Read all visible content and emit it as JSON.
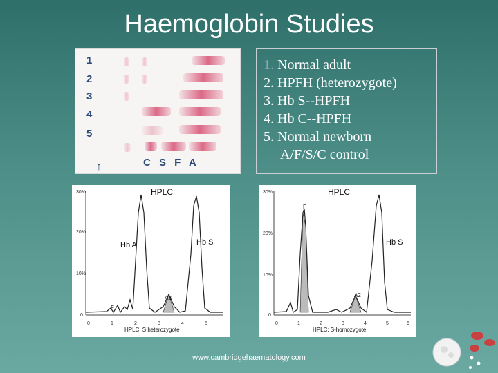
{
  "title": "Haemoglobin Studies",
  "gel": {
    "lanes": [
      "1",
      "2",
      "3",
      "4",
      "5"
    ],
    "markers": "C S F A",
    "origin": "↑"
  },
  "legend": {
    "items": [
      {
        "num": "1.",
        "text": "Normal adult"
      },
      {
        "num": "2.",
        "text": "HPFH (heterozygote)"
      },
      {
        "num": "3.",
        "text": "Hb S--HPFH"
      },
      {
        "num": "4.",
        "text": "Hb C--HPFH"
      },
      {
        "num": "5.",
        "text": "Normal newborn"
      }
    ],
    "continuation": "A/F/S/C control"
  },
  "hplc_left": {
    "title": "HPLC",
    "y_ticks": [
      "30%",
      "20%",
      "10%",
      "0"
    ],
    "x_ticks": [
      "0",
      "1",
      "2",
      "3",
      "4",
      "5"
    ],
    "peak_labels": [
      "Hb A",
      "Hb S",
      "A2",
      "F"
    ],
    "caption": "HPLC: S heterozygote"
  },
  "hplc_right": {
    "title": "HPLC",
    "y_ticks": [
      "30%",
      "20%",
      "10%",
      "0"
    ],
    "x_ticks": [
      "0",
      "1",
      "2",
      "3",
      "4",
      "5",
      "6"
    ],
    "peak_labels": [
      "F",
      "Hb S",
      "A2"
    ],
    "caption": "HPLC: S-homozygote"
  },
  "footer": "www.cambridgehaematology.com",
  "colors": {
    "background": "#4d8f88",
    "band": "#d7507a",
    "panel_border": "#c8d0d6"
  }
}
